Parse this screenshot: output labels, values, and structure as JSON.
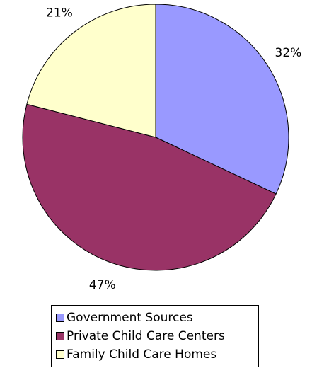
{
  "chart_data": {
    "type": "pie",
    "title": "",
    "slices": [
      {
        "label": "Government Sources",
        "value": 32,
        "display": "32%",
        "color": "#9999ff"
      },
      {
        "label": "Private Child Care Centers",
        "value": 47,
        "display": "47%",
        "color": "#993366"
      },
      {
        "label": "Family Child Care Homes",
        "value": 21,
        "display": "21%",
        "color": "#ffffcc"
      }
    ],
    "start_angle_deg": 90,
    "direction": "clockwise",
    "legend_position": "bottom"
  }
}
